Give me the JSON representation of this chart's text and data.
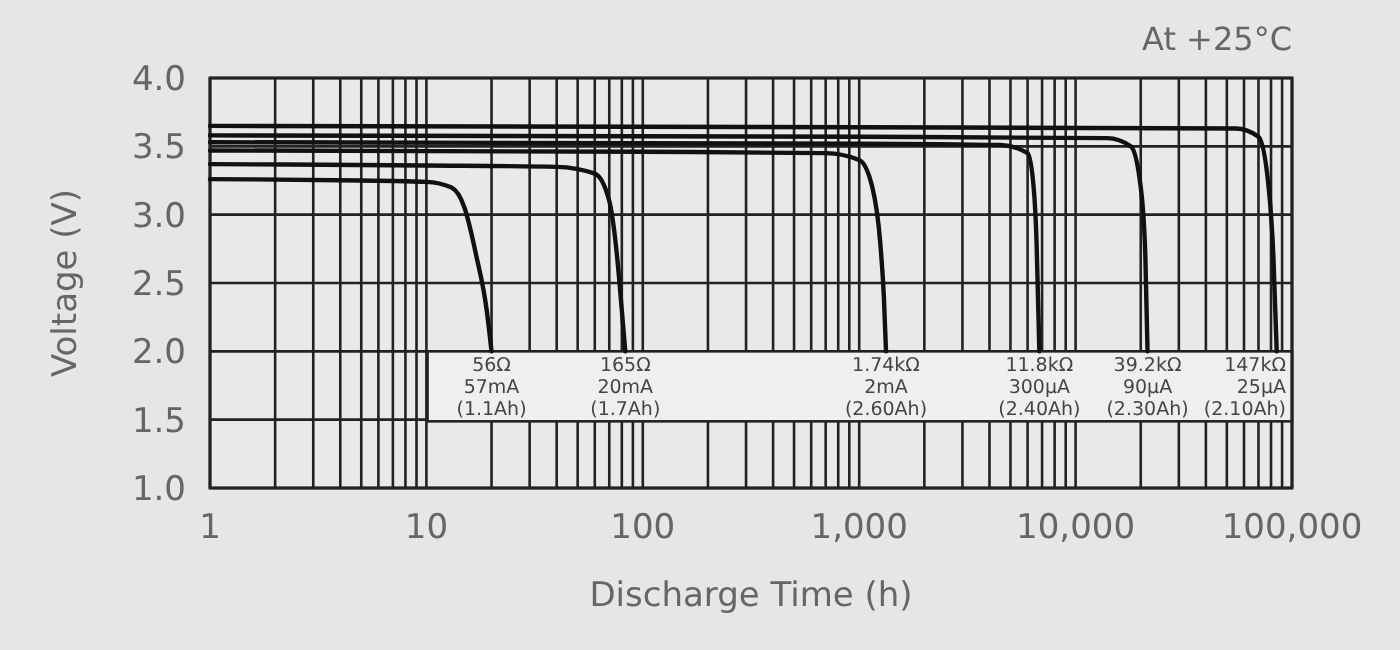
{
  "chart_data": {
    "type": "line",
    "xlabel": "Discharge Time (h)",
    "ylabel": "Voltage (V)",
    "log": "x",
    "xlim": [
      1,
      100000
    ],
    "ylim": [
      1.0,
      4.0
    ],
    "xticks": [
      {
        "value": 1,
        "label": "1"
      },
      {
        "value": 2,
        "label": null
      },
      {
        "value": 3,
        "label": null
      },
      {
        "value": 4,
        "label": null
      },
      {
        "value": 5,
        "label": null
      },
      {
        "value": 6,
        "label": null
      },
      {
        "value": 7,
        "label": null
      },
      {
        "value": 8,
        "label": null
      },
      {
        "value": 9,
        "label": null
      },
      {
        "value": 10,
        "label": "10"
      },
      {
        "value": 20,
        "label": null
      },
      {
        "value": 30,
        "label": null
      },
      {
        "value": 40,
        "label": null
      },
      {
        "value": 50,
        "label": null
      },
      {
        "value": 60,
        "label": null
      },
      {
        "value": 70,
        "label": null
      },
      {
        "value": 80,
        "label": null
      },
      {
        "value": 90,
        "label": null
      },
      {
        "value": 100,
        "label": "100"
      },
      {
        "value": 200,
        "label": null
      },
      {
        "value": 300,
        "label": null
      },
      {
        "value": 400,
        "label": null
      },
      {
        "value": 500,
        "label": null
      },
      {
        "value": 600,
        "label": null
      },
      {
        "value": 700,
        "label": null
      },
      {
        "value": 800,
        "label": null
      },
      {
        "value": 900,
        "label": null
      },
      {
        "value": 1000,
        "label": "1,000"
      },
      {
        "value": 2000,
        "label": null
      },
      {
        "value": 3000,
        "label": null
      },
      {
        "value": 4000,
        "label": null
      },
      {
        "value": 5000,
        "label": null
      },
      {
        "value": 6000,
        "label": null
      },
      {
        "value": 7000,
        "label": null
      },
      {
        "value": 8000,
        "label": null
      },
      {
        "value": 9000,
        "label": null
      },
      {
        "value": 10000,
        "label": "10,000"
      },
      {
        "value": 20000,
        "label": null
      },
      {
        "value": 30000,
        "label": null
      },
      {
        "value": 40000,
        "label": null
      },
      {
        "value": 50000,
        "label": null
      },
      {
        "value": 60000,
        "label": null
      },
      {
        "value": 70000,
        "label": null
      },
      {
        "value": 80000,
        "label": null
      },
      {
        "value": 90000,
        "label": null
      },
      {
        "value": 100000,
        "label": "100,000"
      }
    ],
    "yticks": [
      {
        "value": 1.0,
        "label": "1.0"
      },
      {
        "value": 1.5,
        "label": "1.5"
      },
      {
        "value": 2.0,
        "label": "2.0"
      },
      {
        "value": 2.5,
        "label": "2.5"
      },
      {
        "value": 3.0,
        "label": "3.0"
      },
      {
        "value": 3.5,
        "label": "3.5"
      },
      {
        "value": 4.0,
        "label": "4.0"
      }
    ],
    "grid": true,
    "line_style": "solid",
    "series": [
      {
        "color": "#111111",
        "x": [
          1,
          5,
          10,
          13,
          15,
          17,
          19,
          20
        ],
        "values": [
          3.26,
          3.25,
          3.24,
          3.2,
          3.05,
          2.7,
          2.3,
          2.0
        ]
      },
      {
        "color": "#111111",
        "x": [
          1,
          10,
          40,
          60,
          70,
          76,
          80,
          83
        ],
        "values": [
          3.37,
          3.36,
          3.35,
          3.3,
          3.1,
          2.7,
          2.3,
          2.0
        ]
      },
      {
        "color": "#111111",
        "x": [
          1,
          100,
          700,
          1000,
          1150,
          1250,
          1300,
          1330
        ],
        "values": [
          3.47,
          3.46,
          3.45,
          3.4,
          3.2,
          2.8,
          2.4,
          2.0
        ]
      },
      {
        "color": "#111111",
        "x": [
          1,
          1000,
          4500,
          6000,
          6400,
          6600,
          6700,
          6800
        ],
        "values": [
          3.53,
          3.52,
          3.51,
          3.45,
          3.2,
          2.8,
          2.4,
          2.0
        ]
      },
      {
        "color": "#111111",
        "x": [
          1,
          1000,
          14000,
          18000,
          20000,
          21000,
          21500
        ],
        "values": [
          3.58,
          3.57,
          3.56,
          3.5,
          3.2,
          2.7,
          2.0
        ]
      },
      {
        "color": "#111111",
        "x": [
          1,
          1000,
          55000,
          70000,
          78000,
          82000,
          85000
        ],
        "values": [
          3.65,
          3.64,
          3.63,
          3.57,
          3.2,
          2.7,
          2.0
        ]
      }
    ],
    "annotations": [
      "At +25°C",
      {
        "text": "56Ω\n57mA\n(1.1Ah)",
        "x": 20,
        "y": 2.0
      },
      {
        "text": "165Ω\n20mA\n(1.7Ah)",
        "x": 83,
        "y": 2.0
      },
      {
        "text": "1.74kΩ\n2mA\n(2.60Ah)",
        "x": 1330,
        "y": 2.0
      },
      {
        "text": "11.8kΩ\n300µA\n(2.40Ah)",
        "x": 6800,
        "y": 2.0
      },
      {
        "text": "39.2kΩ\n90µA\n(2.30Ah)",
        "x": 21500,
        "y": 2.0
      },
      {
        "text": "147kΩ\n25µA\n(2.10Ah)",
        "x": 85000,
        "y": 2.0
      }
    ]
  }
}
